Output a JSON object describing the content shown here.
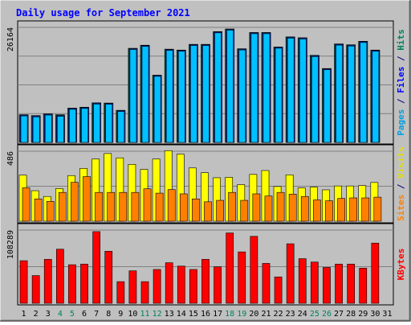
{
  "title": "Daily usage for September 2021",
  "ymax_labels": {
    "top": "26164",
    "middle": "486",
    "bottom": "108289"
  },
  "right_labels": {
    "top": [
      {
        "text": "Pages",
        "color": "#00a0e0"
      },
      {
        "text": " / ",
        "color": "#000080"
      },
      {
        "text": "Files",
        "color": "#0000ff"
      },
      {
        "text": " / ",
        "color": "#000080"
      },
      {
        "text": "Hits",
        "color": "#008060"
      }
    ],
    "middle": [
      {
        "text": "Sites",
        "color": "#ff8000"
      },
      {
        "text": " / ",
        "color": "#000080"
      },
      {
        "text": "Visits",
        "color": "#e0e000"
      }
    ],
    "bottom": [
      {
        "text": "KBytes",
        "color": "#ff0000"
      }
    ]
  },
  "colors": {
    "hits": "#008060",
    "files": "#0040ff",
    "pages": "#00c0ff",
    "visits": "#ffff00",
    "sites": "#ff8000",
    "kbytes": "#ff0000",
    "panel": "#c0c0c0",
    "grid": "#808080",
    "weekend_day": "#008060",
    "weekday": "#000000"
  },
  "chart_data": [
    {
      "type": "bar",
      "name": "Hits / Files / Pages",
      "ymax": 26164,
      "categories": [
        "1",
        "2",
        "3",
        "4",
        "5",
        "6",
        "7",
        "8",
        "9",
        "10",
        "11",
        "12",
        "13",
        "14",
        "15",
        "16",
        "17",
        "18",
        "19",
        "20",
        "21",
        "22",
        "23",
        "24",
        "25",
        "26",
        "27",
        "28",
        "29",
        "30",
        "31"
      ],
      "series": [
        {
          "name": "Hits",
          "values": [
            6300,
            6100,
            6500,
            6300,
            7800,
            8000,
            9000,
            8950,
            7300,
            21400,
            22100,
            15300,
            21200,
            21000,
            22300,
            22300,
            25200,
            25800,
            21300,
            25000,
            25000,
            21700,
            24000,
            23800,
            19800,
            16800,
            22400,
            22200,
            23000,
            21000,
            0
          ]
        },
        {
          "name": "Files",
          "values": [
            6200,
            6000,
            6400,
            6100,
            7700,
            7900,
            8900,
            8850,
            7200,
            21300,
            22000,
            15200,
            21100,
            20900,
            22200,
            22200,
            25100,
            25700,
            21200,
            24900,
            24900,
            21600,
            23900,
            23700,
            19700,
            16700,
            22300,
            22100,
            22900,
            20900,
            0
          ]
        },
        {
          "name": "Pages",
          "values": [
            6200,
            6000,
            6400,
            6100,
            7700,
            7900,
            8900,
            8850,
            7200,
            21300,
            22000,
            15200,
            21100,
            20900,
            22200,
            22200,
            25100,
            25700,
            21200,
            24900,
            24900,
            21600,
            23900,
            23700,
            19700,
            16700,
            22300,
            22100,
            22900,
            20900,
            0
          ]
        }
      ]
    },
    {
      "type": "bar",
      "name": "Visits / Sites",
      "ymax": 486,
      "categories": [
        "1",
        "2",
        "3",
        "4",
        "5",
        "6",
        "7",
        "8",
        "9",
        "10",
        "11",
        "12",
        "13",
        "14",
        "15",
        "16",
        "17",
        "18",
        "19",
        "20",
        "21",
        "22",
        "23",
        "24",
        "25",
        "26",
        "27",
        "28",
        "29",
        "30",
        "31"
      ],
      "series": [
        {
          "name": "Visits",
          "values": [
            320,
            212,
            172,
            227,
            317,
            367,
            432,
            470,
            440,
            395,
            360,
            432,
            490,
            466,
            370,
            337,
            302,
            305,
            254,
            325,
            352,
            241,
            322,
            231,
            237,
            218,
            245,
            245,
            248,
            269,
            0
          ]
        },
        {
          "name": "Sites",
          "values": [
            232,
            155,
            138,
            200,
            270,
            310,
            200,
            200,
            200,
            200,
            225,
            195,
            220,
            190,
            155,
            135,
            145,
            200,
            145,
            190,
            175,
            200,
            188,
            172,
            148,
            142,
            158,
            162,
            162,
            167,
            0
          ]
        }
      ]
    },
    {
      "type": "bar",
      "name": "KBytes",
      "ymax": 108289,
      "categories": [
        "1",
        "2",
        "3",
        "4",
        "5",
        "6",
        "7",
        "8",
        "9",
        "10",
        "11",
        "12",
        "13",
        "14",
        "15",
        "16",
        "17",
        "18",
        "19",
        "20",
        "21",
        "22",
        "23",
        "24",
        "25",
        "26",
        "27",
        "28",
        "29",
        "30",
        "31"
      ],
      "series": [
        {
          "name": "KBytes",
          "values": [
            63000,
            41000,
            65000,
            80000,
            57000,
            58000,
            106000,
            77000,
            32000,
            48000,
            32000,
            50000,
            60000,
            55000,
            50000,
            65000,
            54000,
            104000,
            76000,
            99000,
            59000,
            39000,
            88000,
            66000,
            61000,
            53000,
            58000,
            58000,
            52000,
            89000,
            0
          ]
        }
      ]
    }
  ],
  "weekend_days": [
    "4",
    "5",
    "11",
    "12",
    "18",
    "19",
    "25",
    "26"
  ]
}
